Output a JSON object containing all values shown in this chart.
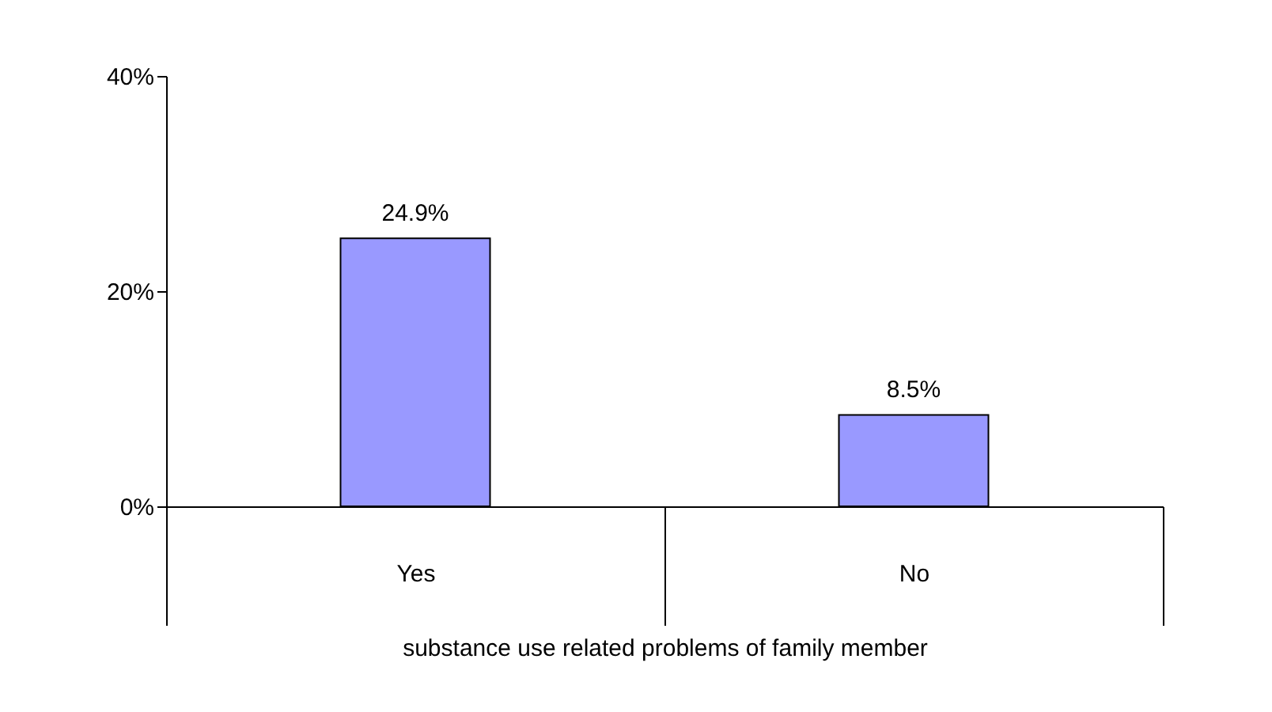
{
  "chart_data": {
    "type": "bar",
    "xlabel": "substance use related problems of family member",
    "categories": [
      "Yes",
      "No"
    ],
    "values": [
      24.9,
      8.5
    ],
    "value_labels": [
      "24.9%",
      "8.5%"
    ],
    "color": "#9999ff",
    "ylim": [
      0,
      40
    ],
    "yticks": [
      {
        "value": 0,
        "label": "0%"
      },
      {
        "value": 20,
        "label": "20%"
      },
      {
        "value": 40,
        "label": "40%"
      }
    ],
    "grid": false
  }
}
